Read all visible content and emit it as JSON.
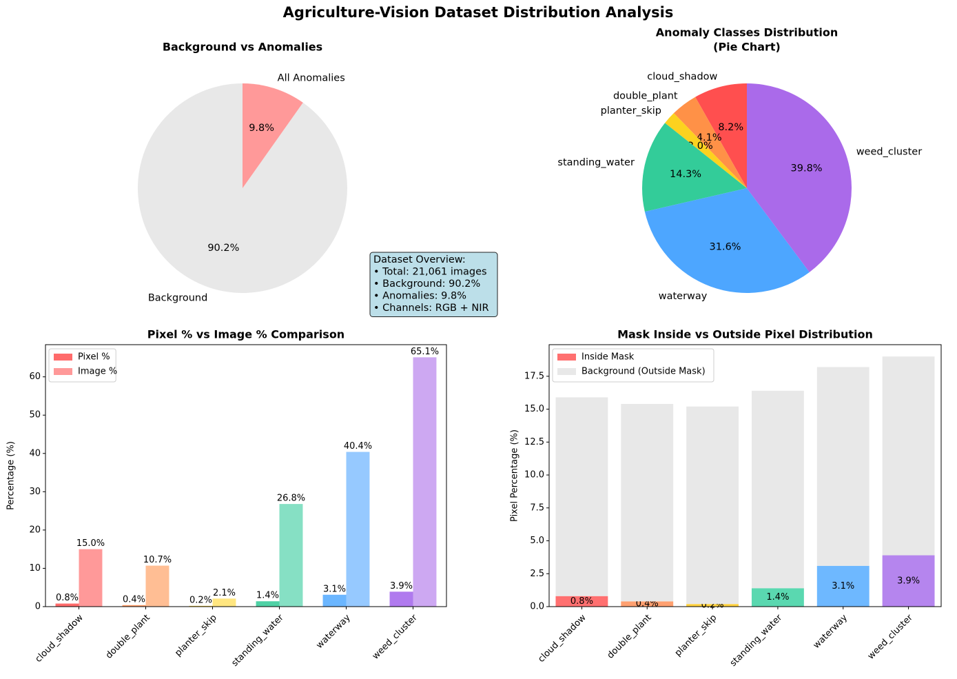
{
  "title": "Agriculture-Vision Dataset Distribution Analysis",
  "chart_data": [
    {
      "type": "pie",
      "title": [
        "Background vs Anomalies"
      ],
      "categories": [
        "Background",
        "All Anomalies"
      ],
      "values": [
        90.2,
        9.8
      ],
      "value_labels": [
        "90.2%",
        "9.8%"
      ],
      "colors": [
        "#e8e8e8",
        "#ff9999"
      ],
      "annotation": [
        "Dataset Overview:",
        "• Total: 21,061 images",
        "• Background: 90.2%",
        "• Anomalies: 9.8%",
        "• Channels: RGB + NIR"
      ]
    },
    {
      "type": "pie",
      "title": [
        "Anomaly Classes Distribution",
        "(Pie Chart)"
      ],
      "categories": [
        "cloud_shadow",
        "double_plant",
        "planter_skip",
        "standing_water",
        "waterway",
        "weed_cluster"
      ],
      "values": [
        8.2,
        4.1,
        2.0,
        14.3,
        31.6,
        39.8
      ],
      "value_labels": [
        "8.2%",
        "4.1%",
        "2.0%",
        "14.3%",
        "31.6%",
        "39.8%"
      ],
      "colors": [
        "#ff4f4f",
        "#ff9147",
        "#fcd21f",
        "#33cc99",
        "#4da6ff",
        "#aa6aea"
      ]
    },
    {
      "type": "bar",
      "title": [
        "Pixel % vs Image % Comparison"
      ],
      "categories": [
        "cloud_shadow",
        "double_plant",
        "planter_skip",
        "standing_water",
        "waterway",
        "weed_cluster"
      ],
      "series": [
        {
          "name": "Pixel %",
          "colors": [
            "#ff6b6b",
            "#ff9f6b",
            "#ffd93d",
            "#4fd1a5",
            "#6bb6ff",
            "#b07aee"
          ],
          "values": [
            0.8,
            0.4,
            0.2,
            1.4,
            3.1,
            3.9
          ],
          "value_labels": [
            "0.8%",
            "0.4%",
            "0.2%",
            "1.4%",
            "3.1%",
            "3.9%"
          ]
        },
        {
          "name": "Image %",
          "colors": [
            "#ff9999",
            "#ffbe94",
            "#ffe680",
            "#86e0c4",
            "#96c9ff",
            "#cda8f2"
          ],
          "values": [
            15.0,
            10.7,
            2.1,
            26.8,
            40.4,
            65.1
          ],
          "value_labels": [
            "15.0%",
            "10.7%",
            "2.1%",
            "26.8%",
            "40.4%",
            "65.1%"
          ]
        }
      ],
      "ylabel": "Percentage (%)",
      "ylim": [
        0,
        68.4
      ],
      "yticks": [
        0,
        10,
        20,
        30,
        40,
        50,
        60
      ],
      "legend": "upper left"
    },
    {
      "type": "stacked_bar",
      "title": [
        "Mask Inside vs Outside Pixel Distribution"
      ],
      "categories": [
        "cloud_shadow",
        "double_plant",
        "planter_skip",
        "standing_water",
        "waterway",
        "weed_cluster"
      ],
      "series": [
        {
          "name": "Inside Mask",
          "colors": [
            "#ff7070",
            "#ffa070",
            "#ffd23f",
            "#5ad8b0",
            "#6eb8ff",
            "#b585ee"
          ],
          "values": [
            0.8,
            0.4,
            0.2,
            1.4,
            3.1,
            3.9
          ],
          "value_labels": [
            "0.8%",
            "0.4%",
            "0.2%",
            "1.4%",
            "3.1%",
            "3.9%"
          ]
        },
        {
          "name": "Background (Outside Mask)",
          "colors": [
            "#e8e8e8",
            "#e8e8e8",
            "#e8e8e8",
            "#e8e8e8",
            "#e8e8e8",
            "#e8e8e8"
          ],
          "values": [
            15.1,
            15.0,
            15.0,
            15.0,
            15.1,
            15.1
          ]
        }
      ],
      "ylabel": "Pixel Percentage (%)",
      "ylim": [
        0,
        19.9
      ],
      "yticks": [
        {
          "value": 0,
          "label": "0.0"
        },
        2.5,
        {
          "value": 5,
          "label": "5.0"
        },
        7.5,
        {
          "value": 10,
          "label": "10.0"
        },
        12.5,
        {
          "value": 15,
          "label": "15.0"
        },
        17.5
      ],
      "legend": "upper left"
    }
  ]
}
